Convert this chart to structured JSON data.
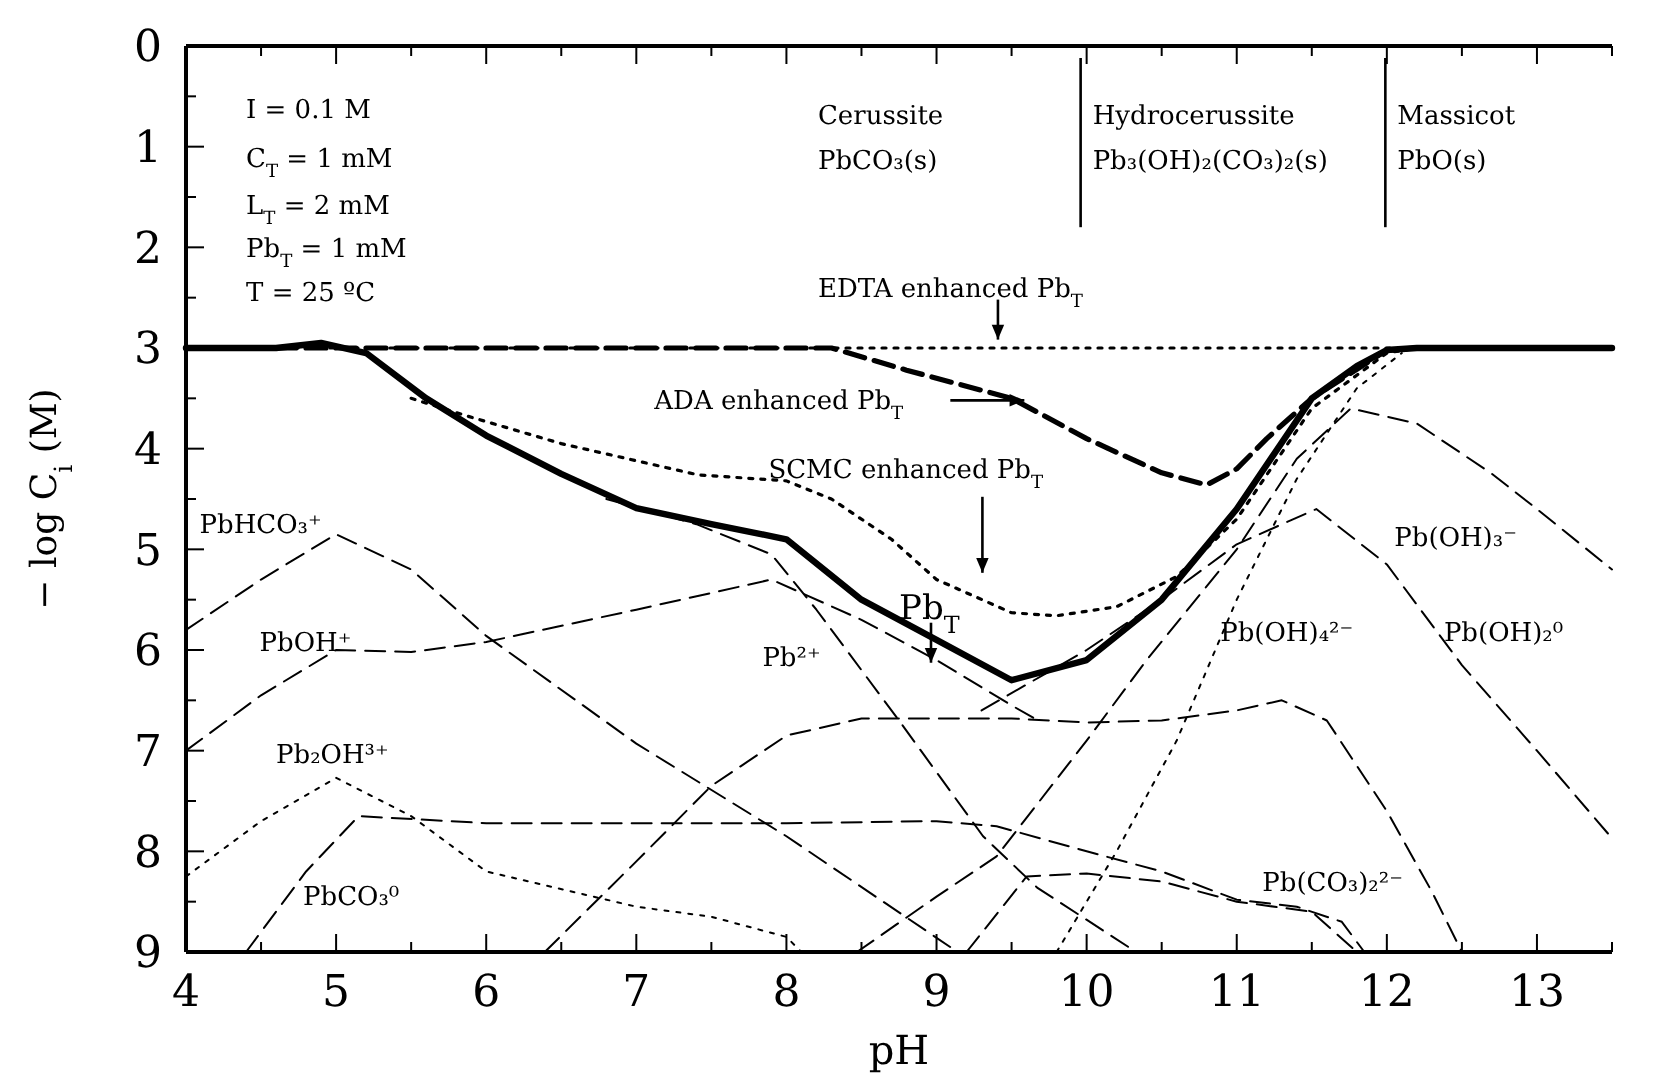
{
  "chart_data": {
    "type": "line",
    "xlabel": "pH",
    "ylabel": "− log C$_{i}$ (M)",
    "xlim": [
      4,
      13.5
    ],
    "ylim": [
      9,
      0
    ],
    "xticks": [
      4,
      {
        "value": 4.5,
        "label": null
      },
      5,
      {
        "value": 5.5,
        "label": null
      },
      6,
      {
        "value": 6.5,
        "label": null
      },
      7,
      {
        "value": 7.5,
        "label": null
      },
      8,
      {
        "value": 8.5,
        "label": null
      },
      9,
      {
        "value": 9.5,
        "label": null
      },
      10,
      {
        "value": 10.5,
        "label": null
      },
      11,
      {
        "value": 11.5,
        "label": null
      },
      12,
      {
        "value": 12.5,
        "label": null
      },
      13,
      {
        "value": 13.5,
        "label": null
      }
    ],
    "yticks": [
      0,
      {
        "value": 0.5,
        "label": null
      },
      1,
      {
        "value": 1.5,
        "label": null
      },
      2,
      {
        "value": 2.5,
        "label": null
      },
      3,
      {
        "value": 3.5,
        "label": null
      },
      4,
      {
        "value": 4.5,
        "label": null
      },
      5,
      {
        "value": 5.5,
        "label": null
      },
      6,
      {
        "value": 6.5,
        "label": null
      },
      7,
      {
        "value": 7.5,
        "label": null
      },
      8,
      {
        "value": 8.5,
        "label": null
      },
      9
    ],
    "grid": false,
    "marker": "none",
    "series": [
      {
        "color": "#000000",
        "line_style": "solid",
        "x": [
          4,
          4.6,
          4.9,
          5.2,
          5.6,
          6,
          6.5,
          7,
          7.5,
          8,
          8.5,
          9,
          9.5,
          10,
          10.5,
          11,
          11.5,
          11.8,
          12,
          12.2,
          13.5
        ],
        "values": [
          3,
          3,
          2.95,
          3.05,
          3.5,
          3.87,
          4.25,
          4.59,
          4.75,
          4.9,
          5.5,
          5.9,
          6.3,
          6.1,
          5.5,
          4.6,
          3.5,
          3.18,
          3.02,
          3,
          3
        ]
      },
      {
        "color": "#000000",
        "line_style": "dotted",
        "x": [
          4,
          8.5,
          13.5
        ],
        "values": [
          3,
          3,
          3
        ]
      },
      {
        "color": "#000000",
        "line_style": "dashed",
        "x": [
          4,
          8.3,
          8.8,
          9.5,
          10,
          10.5,
          10.8,
          11,
          11.2,
          11.5,
          12,
          12.2
        ],
        "values": [
          3,
          3,
          3.22,
          3.5,
          3.9,
          4.24,
          4.36,
          4.2,
          3.9,
          3.5,
          3.02,
          3
        ]
      },
      {
        "color": "#000000",
        "line_style": "dotted",
        "x": [
          5.5,
          5.86,
          6.5,
          7,
          7.41,
          8,
          8.3,
          8.7,
          9,
          9.5,
          9.8,
          10.2,
          10.6,
          11,
          11.5,
          12,
          12.2
        ],
        "values": [
          3.5,
          3.67,
          3.95,
          4.12,
          4.26,
          4.32,
          4.5,
          4.9,
          5.3,
          5.63,
          5.66,
          5.57,
          5.27,
          4.7,
          3.6,
          3.05,
          3
        ]
      },
      {
        "color": "#000000",
        "line_style": "dashed",
        "x": [
          4,
          4.5,
          5,
          5.5,
          6,
          7,
          8,
          9.14
        ],
        "values": [
          5.8,
          5.3,
          4.85,
          5.2,
          5.86,
          6.93,
          7.85,
          9
        ]
      },
      {
        "color": "#000000",
        "line_style": "dashed",
        "x": [
          4,
          4.5,
          5,
          5.5,
          6,
          7,
          7.9,
          8.5,
          9,
          9.5,
          9.7
        ],
        "values": [
          7,
          6.45,
          6,
          6.02,
          5.92,
          5.6,
          5.3,
          5.7,
          6.1,
          6.55,
          6.72
        ]
      },
      {
        "color": "#000000",
        "line_style": "dashed",
        "x": [
          6.8,
          7.4,
          7.9,
          8.2,
          8.74,
          9.31,
          9.67,
          10.33
        ],
        "values": [
          4.5,
          4.75,
          5.05,
          5.6,
          6.68,
          7.85,
          8.36,
          9
        ]
      },
      {
        "color": "#000000",
        "line_style": "dashed",
        "x": [
          6.39,
          7,
          7.5,
          8,
          8.5,
          9,
          9.5,
          10,
          10.5,
          11,
          11.3,
          11.6,
          12,
          12.3,
          12.5
        ],
        "values": [
          9,
          8.1,
          7.35,
          6.85,
          6.68,
          6.68,
          6.68,
          6.72,
          6.7,
          6.6,
          6.5,
          6.7,
          7.6,
          8.4,
          9
        ]
      },
      {
        "color": "#000000",
        "line_style": "dashed",
        "x": [
          9.2,
          9.6,
          10,
          10.5,
          11,
          11.5,
          11.8
        ],
        "values": [
          9,
          8.25,
          8.22,
          8.3,
          8.5,
          8.6,
          9
        ]
      },
      {
        "color": "#000000",
        "line_style": "dashed",
        "x": [
          8.47,
          9,
          9.4,
          10,
          10.4,
          11,
          11.4,
          11.76,
          12.2,
          12.7,
          13,
          13.5
        ],
        "values": [
          9,
          8.45,
          8.05,
          6.9,
          6.1,
          5,
          4.1,
          3.6,
          3.75,
          4.25,
          4.6,
          5.2
        ]
      },
      {
        "color": "#000000",
        "line_style": "dashed",
        "x": [
          9.3,
          10,
          10.5,
          11,
          11.53,
          12,
          12.5,
          13,
          13.5
        ],
        "values": [
          6.6,
          6,
          5.5,
          4.95,
          4.6,
          5.15,
          6.15,
          7,
          7.87
        ]
      },
      {
        "color": "#000000",
        "line_style": "dotted",
        "x": [
          9.8,
          10.2,
          10.6,
          11,
          11.4,
          11.8,
          12.1
        ],
        "values": [
          9,
          8,
          6.9,
          5.5,
          4.3,
          3.4,
          3.05
        ]
      },
      {
        "color": "#000000",
        "line_style": "dotted",
        "x": [
          4,
          4.5,
          5,
          5.5,
          6,
          7,
          7.5,
          8,
          8.1
        ],
        "values": [
          8.25,
          7.7,
          7.27,
          7.65,
          8.2,
          8.55,
          8.65,
          8.85,
          9
        ]
      },
      {
        "color": "#000000",
        "line_style": "dashed",
        "x": [
          4.4,
          4.8,
          5.15,
          6,
          7,
          8,
          9,
          9.4,
          10,
          10.5,
          11,
          11.4,
          11.7,
          11.85
        ],
        "values": [
          9,
          8.2,
          7.65,
          7.72,
          7.72,
          7.72,
          7.7,
          7.75,
          8,
          8.2,
          8.48,
          8.55,
          8.7,
          9
        ]
      }
    ],
    "ref_lines": [
      {
        "axis": "x",
        "value": 9.96,
        "color": "#000000"
      },
      {
        "axis": "x",
        "value": 11.99,
        "color": "#000000"
      }
    ],
    "annotations": [
      "I = 0.1 M",
      "C$_{T}$ = 1 mM",
      "L$_{T}$ = 2 mM",
      "Pb$_{T}$ = 1 mM",
      "T = 25 ºC",
      "Cerussite",
      "PbCO₃(s)",
      "Hydrocerussite",
      "Pb₃(OH)₂(CO₃)₂(s)",
      "Massicot",
      "PbO(s)",
      "EDTA enhanced Pb$_{T}$",
      "ADA enhanced Pb$_{T}$",
      {
        "text": "SCMC enhanced Pb$_{T}$",
        "x": 7.88,
        "y": 4.2
      },
      {
        "text": "Pb$_{T}$",
        "x": 8.75,
        "y": 5.57
      },
      "PbHCO₃⁺",
      "PbOH⁺",
      "Pb₂OH³⁺",
      "PbCO₃⁰",
      "Pb²⁺",
      "Pb(OH)₃⁻",
      {
        "text": "Pb(OH)₄²⁻",
        "x": 10.89,
        "y": 5.82
      },
      {
        "text": "Pb(OH)₂⁰",
        "x": 12.38,
        "y": 5.82
      },
      "Pb(CO₃)₂²⁻"
    ]
  }
}
